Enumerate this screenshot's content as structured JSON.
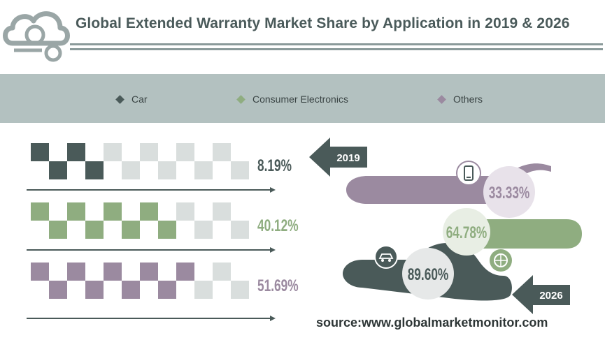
{
  "header": {
    "title": "Global Extended Warranty Market Share by Application in 2019 & 2026"
  },
  "legend": [
    {
      "label": "Car",
      "color": "#4a5a59"
    },
    {
      "label": "Consumer Electronics",
      "color": "#8fad80"
    },
    {
      "label": "Others",
      "color": "#9b8aa0"
    }
  ],
  "chart_data": [
    {
      "type": "waffle",
      "year": "2019",
      "categories": [
        "Car",
        "Consumer Electronics",
        "Others"
      ],
      "values": [
        8.19,
        40.12,
        51.69
      ],
      "value_labels": [
        "8.19%",
        "40.12%",
        "51.69%"
      ],
      "unit": "%"
    },
    {
      "type": "donut-ribbon",
      "year": "2026",
      "categories": [
        "Car",
        "Consumer Electronics",
        "Others"
      ],
      "values": [
        89.6,
        64.78,
        33.33
      ],
      "value_labels": [
        "89.60%",
        "64.78%",
        "33.33%"
      ],
      "unit": "%"
    }
  ],
  "badges": {
    "year_2019": "2019",
    "year_2026": "2026"
  },
  "source": "source:www.globalmarketmonitor.com",
  "colors": {
    "car": "#4a5a59",
    "electronics": "#8fad80",
    "others": "#9b8aa0",
    "empty_cell": "#d9dedd",
    "band": "#b3c1c0",
    "title": "#4a5a5a"
  }
}
